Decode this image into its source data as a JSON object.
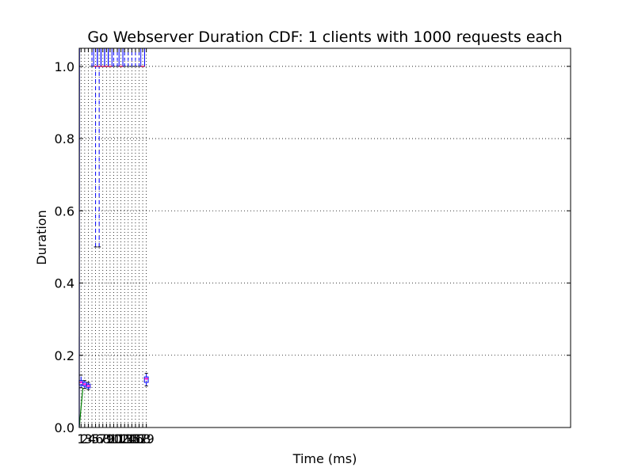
{
  "chart_data": {
    "type": "box",
    "title": "Go Webserver Duration CDF: 1 clients with 1000 requests each",
    "xlabel": "Time (ms)",
    "ylabel": "Duration",
    "xlim": [
      0.5,
      136
    ],
    "ylim": [
      0.0,
      1.05
    ],
    "yticks": [
      0.0,
      0.2,
      0.4,
      0.6,
      0.8,
      1.0
    ],
    "ytick_labels": [
      "0.0",
      "0.2",
      "0.4",
      "0.6",
      "0.8",
      "1.0"
    ],
    "xticks": [
      1,
      2,
      3,
      4,
      5,
      6,
      7,
      8,
      9,
      10,
      11,
      12,
      13,
      14,
      15,
      16,
      17,
      18,
      19
    ],
    "xtick_labels": [
      "1",
      "2",
      "3",
      "4",
      "5",
      "6",
      "7",
      "8",
      "9",
      "10",
      "11",
      "12",
      "13",
      "14",
      "15",
      "16",
      "17",
      "18",
      "19"
    ],
    "grid": true,
    "boxes": [
      {
        "x": 1,
        "whislo": 0.11,
        "q1": 0.118,
        "med": 0.125,
        "q3": 0.13,
        "whishi": 0.145,
        "outlier": true
      },
      {
        "x": 2,
        "whislo": 0.108,
        "q1": 0.115,
        "med": 0.12,
        "q3": 0.125,
        "whishi": 0.13,
        "outlier": true
      },
      {
        "x": 3,
        "whislo": 0.105,
        "q1": 0.11,
        "med": 0.115,
        "q3": 0.12,
        "whishi": 0.125,
        "outlier": true
      },
      {
        "x": 5,
        "whislo": 0.5,
        "q1": 1.0,
        "med": 1.0,
        "q3": 1.1,
        "whishi": 1.1,
        "outlier": false
      },
      {
        "x": 6,
        "whislo": 0.5,
        "q1": 1.0,
        "med": 1.0,
        "q3": 1.1,
        "whishi": 1.1,
        "outlier": false
      },
      {
        "x": 7,
        "whislo": 1.0,
        "q1": 1.0,
        "med": 1.0,
        "q3": 1.1,
        "whishi": 1.1,
        "outlier": false
      },
      {
        "x": 8,
        "whislo": 1.0,
        "q1": 1.0,
        "med": 1.0,
        "q3": 1.1,
        "whishi": 1.1,
        "outlier": false
      },
      {
        "x": 9,
        "whislo": 1.0,
        "q1": 1.0,
        "med": 1.0,
        "q3": 1.1,
        "whishi": 1.1,
        "outlier": false
      },
      {
        "x": 12,
        "whislo": 1.0,
        "q1": 1.0,
        "med": 1.0,
        "q3": 1.1,
        "whishi": 1.1,
        "outlier": false
      },
      {
        "x": 18,
        "whislo": 1.0,
        "q1": 1.0,
        "med": 1.0,
        "q3": 1.1,
        "whishi": 1.1,
        "outlier": false
      },
      {
        "x": 19,
        "whislo": 0.115,
        "q1": 0.125,
        "med": 0.135,
        "q3": 0.14,
        "whishi": 0.15,
        "outlier": true
      }
    ],
    "whisker_caps_only": [
      4,
      10,
      11,
      13,
      14,
      15,
      16,
      17
    ],
    "cdf_lines": [
      {
        "color": "#008000",
        "points": [
          [
            0.5,
            0.0
          ],
          [
            1.5,
            0.11
          ]
        ]
      },
      {
        "color": "#0000ff",
        "points": [
          [
            0.5,
            0.0
          ],
          [
            0.55,
            1.05
          ]
        ]
      }
    ],
    "colors": {
      "box": "#0000ff",
      "whisker": "#0000ff",
      "cap": "#000000",
      "median": "#ff0000",
      "outlier": "#ff00ff",
      "grid": "#000000"
    }
  }
}
